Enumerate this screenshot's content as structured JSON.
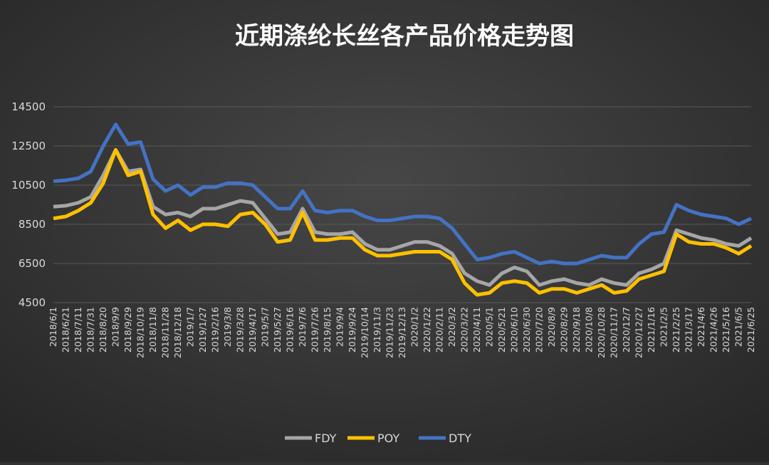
{
  "chart_data": {
    "type": "line",
    "title": "近期涤纶长丝各产品价格走势图",
    "categories": [
      "2018/6/1",
      "2018/6/21",
      "2018/7/11",
      "2018/7/31",
      "2018/8/20",
      "2018/9/9",
      "2018/9/29",
      "2018/10/19",
      "2018/11/8",
      "2018/11/28",
      "2018/12/18",
      "2019/1/7",
      "2019/1/27",
      "2019/2/16",
      "2019/3/8",
      "2019/3/28",
      "2019/4/17",
      "2019/5/7",
      "2019/5/27",
      "2019/6/16",
      "2019/7/6",
      "2019/7/26",
      "2019/8/15",
      "2019/9/4",
      "2019/9/24",
      "2019/10/14",
      "2019/11/3",
      "2019/11/23",
      "2019/12/13",
      "2020/1/2",
      "2020/1/22",
      "2020/2/11",
      "2020/3/2",
      "2020/3/22",
      "2020/4/11",
      "2020/5/1",
      "2020/5/21",
      "2020/6/10",
      "2020/6/30",
      "2020/7/20",
      "2020/8/9",
      "2020/8/29",
      "2020/9/18",
      "2020/10/8",
      "2020/10/28",
      "2020/11/17",
      "2020/12/7",
      "2020/12/27",
      "2021/1/16",
      "2021/2/5",
      "2021/2/25",
      "2021/3/17",
      "2021/4/6",
      "2021/4/26",
      "2021/5/16",
      "2021/6/5",
      "2021/6/25"
    ],
    "series": [
      {
        "name": "FDY",
        "color": "#a6a6a6",
        "values": [
          9400,
          9450,
          9600,
          9900,
          11000,
          12300,
          11200,
          11300,
          9400,
          9000,
          9100,
          8900,
          9300,
          9300,
          9500,
          9700,
          9600,
          8800,
          8000,
          8100,
          9300,
          8100,
          8000,
          8000,
          8100,
          7500,
          7200,
          7200,
          7400,
          7600,
          7600,
          7400,
          7000,
          6000,
          5600,
          5400,
          6000,
          6300,
          6100,
          5400,
          5600,
          5700,
          5500,
          5400,
          5700,
          5500,
          5400,
          6000,
          6200,
          6500,
          8200,
          8000,
          7800,
          7700,
          7500,
          7400,
          7800
        ]
      },
      {
        "name": "POY",
        "color": "#ffc000",
        "values": [
          8800,
          8900,
          9200,
          9600,
          10600,
          12300,
          11000,
          11200,
          9000,
          8300,
          8700,
          8200,
          8500,
          8500,
          8400,
          9000,
          9100,
          8500,
          7600,
          7700,
          9100,
          7700,
          7700,
          7800,
          7800,
          7200,
          6900,
          6900,
          7000,
          7100,
          7100,
          7100,
          6700,
          5500,
          4900,
          5000,
          5500,
          5600,
          5500,
          5000,
          5200,
          5200,
          5000,
          5200,
          5400,
          5000,
          5100,
          5700,
          5900,
          6100,
          8000,
          7600,
          7500,
          7500,
          7300,
          7000,
          7400
        ]
      },
      {
        "name": "DTY",
        "color": "#4472c4",
        "values": [
          10700,
          10750,
          10850,
          11200,
          12500,
          13600,
          12600,
          12700,
          10800,
          10200,
          10500,
          10000,
          10400,
          10400,
          10600,
          10600,
          10500,
          9900,
          9300,
          9300,
          10200,
          9200,
          9100,
          9200,
          9200,
          8900,
          8700,
          8700,
          8800,
          8900,
          8900,
          8800,
          8300,
          7500,
          6700,
          6800,
          7000,
          7100,
          6800,
          6500,
          6600,
          6500,
          6500,
          6700,
          6900,
          6800,
          6800,
          7500,
          8000,
          8100,
          9500,
          9200,
          9000,
          8900,
          8800,
          8500,
          8800
        ]
      }
    ],
    "ylim": [
      4500,
      14500
    ],
    "yticks": [
      4500,
      6500,
      8500,
      10500,
      12500,
      14500
    ],
    "grid": true,
    "legend": "bottom"
  }
}
